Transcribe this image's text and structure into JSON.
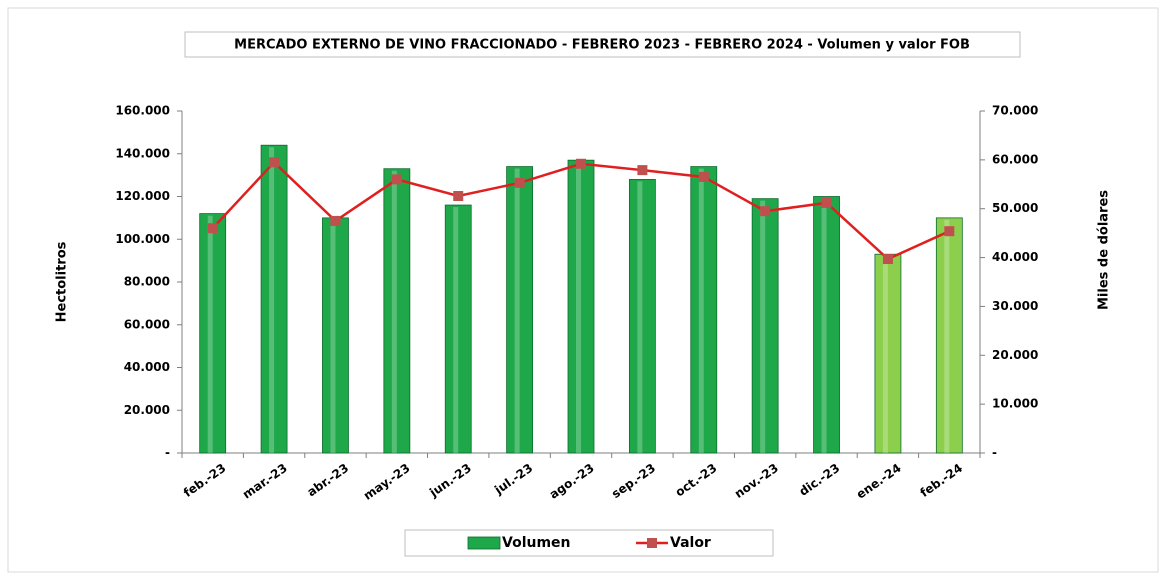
{
  "chart_data": {
    "type": "bar_line",
    "title": "MERCADO EXTERNO DE VINO FRACCIONADO - FEBRERO 2023 - FEBRERO 2024 - Volumen y valor FOB",
    "y_label": "Hectolitros",
    "y2_label": "Miles de dólares",
    "categories": [
      "feb.-23",
      "mar.-23",
      "abr.-23",
      "may.-23",
      "jun.-23",
      "jul.-23",
      "ago.-23",
      "sep.-23",
      "oct.-23",
      "nov.-23",
      "dic.-23",
      "ene.-24",
      "feb.-24"
    ],
    "series": [
      {
        "name": "Volumen",
        "type": "bar",
        "color": "#1ea84a",
        "colors": [
          "#1ea84a",
          "#1ea84a",
          "#1ea84a",
          "#1ea84a",
          "#1ea84a",
          "#1ea84a",
          "#1ea84a",
          "#1ea84a",
          "#1ea84a",
          "#1ea84a",
          "#1ea84a",
          "#8ccf4d",
          "#8ccf4d"
        ],
        "values": [
          112000,
          144000,
          110000,
          133000,
          116000,
          134000,
          137000,
          128000,
          134000,
          119000,
          120000,
          93000,
          110000
        ]
      },
      {
        "name": "Valor",
        "type": "line",
        "axis": "y2",
        "color": "#e02020",
        "marker_color": "#c0504d",
        "values": [
          46000,
          59500,
          47500,
          56000,
          52600,
          55300,
          59200,
          57900,
          56500,
          49500,
          51200,
          39700,
          45400
        ]
      }
    ],
    "ylim": [
      0,
      160000
    ],
    "yticks": [
      {
        "value": 0,
        "label": "-"
      },
      {
        "value": 20000,
        "label": "20.000"
      },
      {
        "value": 40000,
        "label": "40.000"
      },
      {
        "value": 60000,
        "label": "60.000"
      },
      {
        "value": 80000,
        "label": "80.000"
      },
      {
        "value": 100000,
        "label": "100.000"
      },
      {
        "value": 120000,
        "label": "120.000"
      },
      {
        "value": 140000,
        "label": "140.000"
      },
      {
        "value": 160000,
        "label": "160.000"
      }
    ],
    "y2lim": [
      0,
      70000
    ],
    "y2ticks": [
      {
        "value": 0,
        "label": "-"
      },
      {
        "value": 10000,
        "label": "10.000"
      },
      {
        "value": 20000,
        "label": "20.000"
      },
      {
        "value": 30000,
        "label": "30.000"
      },
      {
        "value": 40000,
        "label": "40.000"
      },
      {
        "value": 50000,
        "label": "50.000"
      },
      {
        "value": 60000,
        "label": "60.000"
      },
      {
        "value": 70000,
        "label": "70.000"
      }
    ],
    "grid": false,
    "legend": "bottom"
  }
}
